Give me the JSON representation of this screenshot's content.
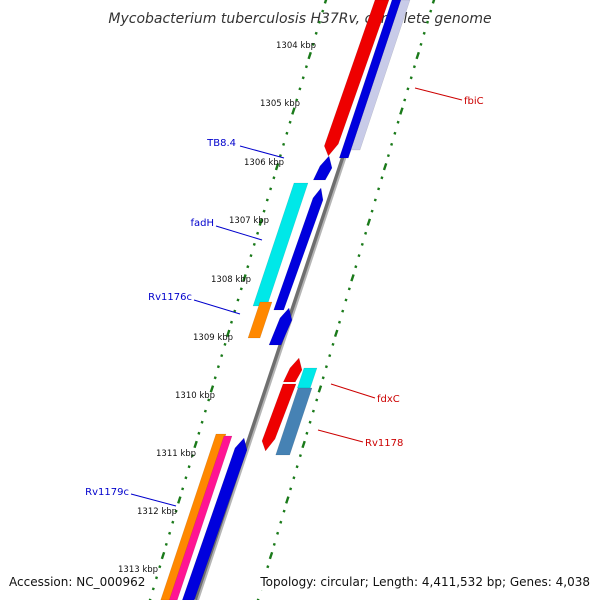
{
  "title": "Mycobacterium tuberculosis H37Rv, complete genome",
  "footer": {
    "accession": "Accession: NC_000962",
    "topology": "Topology: circular; Length: 4,411,532 bp; Genes: 4,038"
  },
  "kbp_labels": [
    "1304 kbp",
    "1305 kbp",
    "1306 kbp",
    "1307 kbp",
    "1308 kbp",
    "1309 kbp",
    "1310 kbp",
    "1311 kbp",
    "1312 kbp",
    "1313 kbp"
  ],
  "gene_labels": [
    {
      "name": "fbiC",
      "color": "#cc0000"
    },
    {
      "name": "TB8.4",
      "color": "#0000cc"
    },
    {
      "name": "fadH",
      "color": "#0000cc"
    },
    {
      "name": "Rv1176c",
      "color": "#0000cc"
    },
    {
      "name": "fdxC",
      "color": "#cc0000"
    },
    {
      "name": "Rv1178",
      "color": "#cc0000"
    },
    {
      "name": "Rv1179c",
      "color": "#0000cc"
    }
  ],
  "colors": {
    "backbone": "#888888",
    "tick_green": "#1a7a1a",
    "forward_red": "#ee0000",
    "reverse_blue": "#0000dd",
    "cyan": "#00e8e8",
    "orange": "#ff8800",
    "pink": "#ff1493",
    "steelblue": "#4682b4"
  }
}
